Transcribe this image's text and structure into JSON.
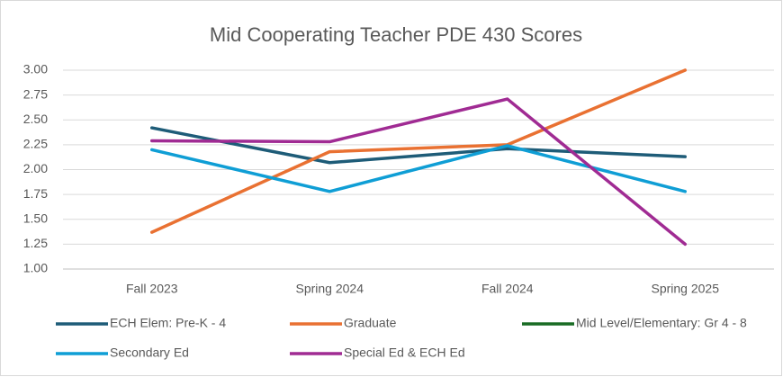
{
  "chart_data": {
    "type": "line",
    "title": "Mid Cooperating Teacher PDE 430 Scores",
    "categories": [
      "Fall 2023",
      "Spring 2024",
      "Fall 2024",
      "Spring 2025"
    ],
    "series": [
      {
        "name": "ECH Elem: Pre-K - 4",
        "color": "#1e5c78",
        "values": [
          2.42,
          2.07,
          2.21,
          2.13
        ]
      },
      {
        "name": "Graduate",
        "color": "#e97132",
        "values": [
          1.37,
          2.18,
          2.25,
          3.0
        ]
      },
      {
        "name": "Mid Level/Elementary: Gr 4 - 8",
        "color": "#196b24",
        "values": [
          null,
          null,
          null,
          null
        ]
      },
      {
        "name": "Secondary Ed",
        "color": "#0f9ed5",
        "values": [
          2.2,
          1.78,
          2.24,
          1.78
        ]
      },
      {
        "name": "Special Ed & ECH Ed",
        "color": "#a02b93",
        "values": [
          2.29,
          2.28,
          2.71,
          1.25
        ]
      }
    ],
    "ylim": [
      1,
      3
    ],
    "yticks": [
      {
        "value": 1,
        "label": "1.00"
      },
      {
        "value": 1.25,
        "label": "1.25"
      },
      {
        "value": 1.5,
        "label": "1.50"
      },
      {
        "value": 1.75,
        "label": "1.75"
      },
      {
        "value": 2,
        "label": "2.00"
      },
      {
        "value": 2.25,
        "label": "2.25"
      },
      {
        "value": 2.5,
        "label": "2.50"
      },
      {
        "value": 2.75,
        "label": "2.75"
      },
      {
        "value": 3,
        "label": "3.00"
      }
    ],
    "grid": true,
    "legend": "bottom"
  }
}
